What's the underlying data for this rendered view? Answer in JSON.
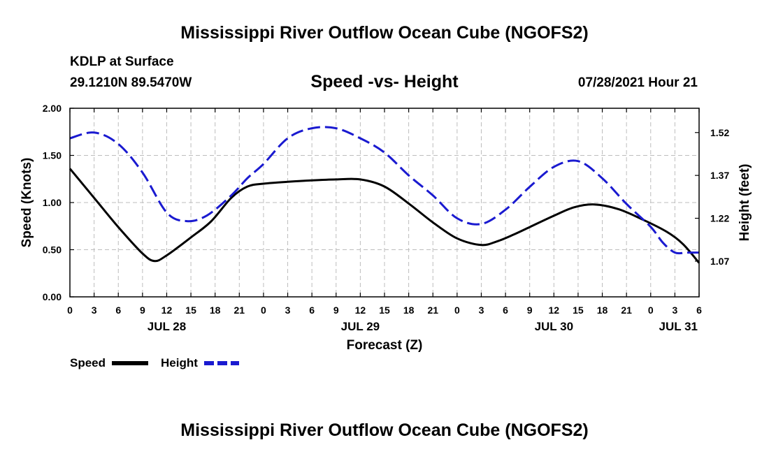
{
  "title": "Mississippi River Outflow Ocean Cube (NGOFS2)",
  "footer_title": "Mississippi River Outflow Ocean Cube (NGOFS2)",
  "station": "KDLP at Surface",
  "coords": "29.1210N  89.5470W",
  "date_label": "07/28/2021 Hour 21",
  "colors": {
    "speed": "#000000",
    "height": "#1a1ad0",
    "grid": "#bdbdbd"
  },
  "chart_data": {
    "type": "line",
    "title": "Speed -vs- Height",
    "xlabel": "Forecast (Z)",
    "ylabel_left": "Speed (Knots)",
    "ylabel_right": "Height (feet)",
    "x_unit": "hours since 07/28 00Z",
    "xlim": [
      0,
      78
    ],
    "ylim_left": [
      0,
      2
    ],
    "ylim_right": [
      0.945,
      1.605
    ],
    "x_ticks": [
      0,
      3,
      6,
      9,
      12,
      15,
      18,
      21,
      24,
      27,
      30,
      33,
      36,
      39,
      42,
      45,
      48,
      51,
      54,
      57,
      60,
      63,
      66,
      69,
      72,
      75,
      78
    ],
    "x_tick_labels": [
      "0",
      "3",
      "6",
      "9",
      "12",
      "15",
      "18",
      "21",
      "0",
      "3",
      "6",
      "9",
      "12",
      "15",
      "18",
      "21",
      "0",
      "3",
      "6",
      "9",
      "12",
      "15",
      "18",
      "21",
      "0",
      "3",
      "6"
    ],
    "y_ticks_left": [
      0,
      0.5,
      1,
      1.5,
      2
    ],
    "y_tick_labels_left": [
      "0.00",
      "0.50",
      "1.00",
      "1.50",
      "2.00"
    ],
    "y_ticks_right": [
      1.07,
      1.22,
      1.37,
      1.52
    ],
    "y_tick_labels_right": [
      "1.07",
      "1.22",
      "1.37",
      "1.52"
    ],
    "day_labels": [
      {
        "x": 12,
        "label": "JUL 28"
      },
      {
        "x": 36,
        "label": "JUL 29"
      },
      {
        "x": 60,
        "label": "JUL 30"
      },
      {
        "x": 78,
        "label": "JUL 31"
      }
    ],
    "grid": true,
    "legend_position": "bottom-left",
    "series": [
      {
        "name": "Speed",
        "axis": "left",
        "style": "solid",
        "x": [
          0,
          3,
          6,
          9,
          10.5,
          12,
          15,
          17.5,
          20,
          22,
          24,
          27,
          30,
          33,
          36,
          39,
          42,
          45,
          48,
          51,
          53,
          55,
          57,
          60,
          62.5,
          65,
          68,
          71,
          74,
          76,
          78
        ],
        "y": [
          1.36,
          1.05,
          0.74,
          0.46,
          0.38,
          0.44,
          0.63,
          0.8,
          1.05,
          1.17,
          1.2,
          1.22,
          1.235,
          1.245,
          1.245,
          1.17,
          0.99,
          0.79,
          0.62,
          0.55,
          0.59,
          0.66,
          0.74,
          0.86,
          0.95,
          0.98,
          0.93,
          0.82,
          0.69,
          0.56,
          0.36
        ]
      },
      {
        "name": "Height",
        "axis": "right",
        "style": "dashed",
        "x": [
          0,
          3,
          6,
          9,
          12,
          14.5,
          17,
          20,
          22,
          24,
          27,
          30,
          33,
          36,
          39,
          42,
          45,
          48,
          51,
          54,
          57,
          60,
          63,
          66,
          69,
          72,
          73.5,
          75,
          76.5,
          78
        ],
        "y": [
          1.5,
          1.52,
          1.48,
          1.38,
          1.24,
          1.21,
          1.23,
          1.3,
          1.36,
          1.41,
          1.5,
          1.535,
          1.535,
          1.5,
          1.45,
          1.37,
          1.3,
          1.22,
          1.2,
          1.25,
          1.33,
          1.4,
          1.42,
          1.36,
          1.27,
          1.19,
          1.135,
          1.1,
          1.1,
          1.1
        ]
      }
    ]
  }
}
